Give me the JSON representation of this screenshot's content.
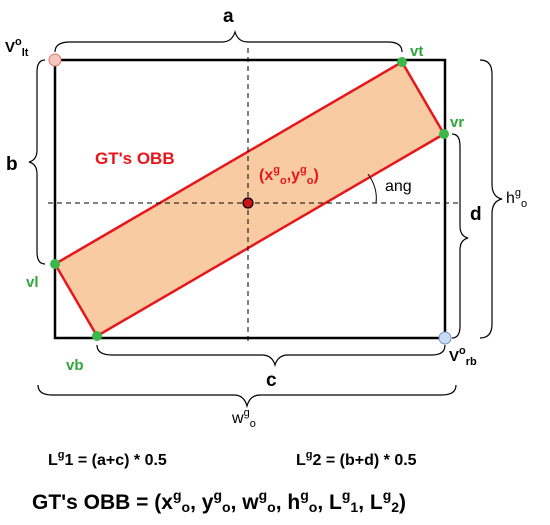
{
  "labels": {
    "a": "a",
    "b": "b",
    "c": "c",
    "d": "d",
    "ang": "ang",
    "gt_obb": "GT's OBB",
    "vt": "vt",
    "vr": "vr",
    "vl": "vl",
    "vb": "vb",
    "vo_lt": {
      "base": "V",
      "sup": "o",
      "sub": "lt"
    },
    "vo_rb": {
      "base": "V",
      "sup": "o",
      "sub": "rb"
    },
    "center": {
      "open": "(x",
      "sup1": "g",
      "sub1": "o",
      "comma": ",y",
      "sup2": "g",
      "sub2": "o",
      "close": ")"
    },
    "h_go": {
      "base": "h",
      "sup": "g",
      "sub": "o"
    },
    "w_go": {
      "base": "w",
      "sup": "g",
      "sub": "o"
    }
  },
  "formulas": {
    "l1": {
      "base": "L",
      "sup": "g",
      "rest": "1 = (a+c)  * 0.5"
    },
    "l2": {
      "base": "L",
      "sup": "g",
      "rest": "2 = (b+d)  * 0.5"
    },
    "obb": {
      "prefix": "GT's OBB = (x",
      "p1": "g",
      "s1": "o",
      "t1": ", y",
      "p2": "g",
      "s2": "o",
      "t2": ", w",
      "p3": "g",
      "s3": "o",
      "t3": ", h",
      "p4": "g",
      "s4": "o",
      "t4": ", L",
      "p5": "g",
      "s5": "1",
      "t5": ", L",
      "p6": "g",
      "s6": "2",
      "t6": ")"
    }
  },
  "colors": {
    "frame": "#000000",
    "obb_stroke": "#e8161b",
    "obb_fill": "#f8cba3",
    "vertex_green": "#3bb84a",
    "label_green": "#2fa53a",
    "label_red": "#e8161b",
    "corner_lt": "#f6c7c0",
    "corner_rb": "#c9dcf3",
    "center_dot": "#c9141a"
  }
}
